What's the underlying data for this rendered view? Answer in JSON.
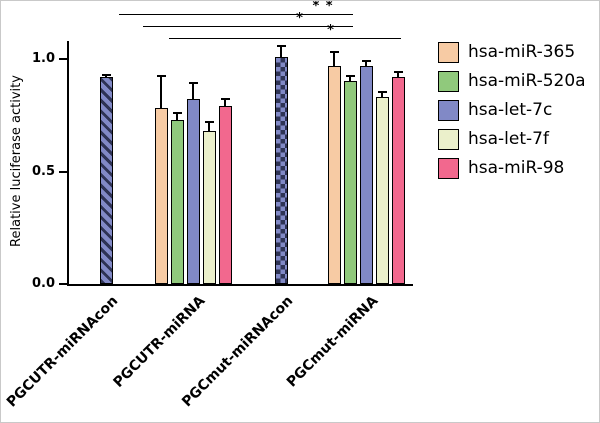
{
  "figure": {
    "background": "#ffffff",
    "border_color": "#c9c9c9"
  },
  "chart_data": {
    "type": "bar",
    "title": "",
    "ylabel": "Relative luciferase activity",
    "yticks": [
      0,
      0.5,
      1
    ],
    "ylim": [
      0,
      1.15
    ],
    "grid": false,
    "legend_position": "right",
    "series": [
      {
        "name": "hsa-miR-365",
        "color": "#F7CBA4"
      },
      {
        "name": "hsa-miR-520a",
        "color": "#90C97C"
      },
      {
        "name": "hsa-let-7c",
        "color": "#8189C6"
      },
      {
        "name": "hsa-let-7f",
        "color": "#EBF0CB"
      },
      {
        "name": "hsa-miR-98",
        "color": "#F2688E"
      }
    ],
    "groups": [
      {
        "label": "PGCUTR-miRNAcon",
        "bars": [
          {
            "series": "control",
            "value": 0.92,
            "error": 0.01,
            "color": "#8189C6",
            "pattern": "diagonal-stripes",
            "pattern_color": "#2E3355"
          }
        ]
      },
      {
        "label": "PGCUTR-miRNA",
        "bars": [
          {
            "series": "hsa-miR-365",
            "value": 0.78,
            "error": 0.14
          },
          {
            "series": "hsa-miR-520a",
            "value": 0.73,
            "error": 0.03
          },
          {
            "series": "hsa-let-7c",
            "value": 0.82,
            "error": 0.07
          },
          {
            "series": "hsa-let-7f",
            "value": 0.68,
            "error": 0.04
          },
          {
            "series": "hsa-miR-98",
            "value": 0.79,
            "error": 0.03
          }
        ]
      },
      {
        "label": "PGCmut-miRNAcon",
        "bars": [
          {
            "series": "control",
            "value": 1.01,
            "error": 0.05,
            "color": "#8189C6",
            "pattern": "checker",
            "pattern_color": "#2E3355"
          }
        ]
      },
      {
        "label": "PGCmut-miRNA",
        "bars": [
          {
            "series": "hsa-miR-365",
            "value": 0.97,
            "error": 0.06
          },
          {
            "series": "hsa-miR-520a",
            "value": 0.9,
            "error": 0.02
          },
          {
            "series": "hsa-let-7c",
            "value": 0.97,
            "error": 0.02
          },
          {
            "series": "hsa-let-7f",
            "value": 0.83,
            "error": 0.02
          },
          {
            "series": "hsa-miR-98",
            "value": 0.92,
            "error": 0.02
          }
        ]
      }
    ],
    "annotations": [
      {
        "label": "* *"
      },
      {
        "label": "*"
      },
      {
        "label": "*"
      }
    ]
  }
}
